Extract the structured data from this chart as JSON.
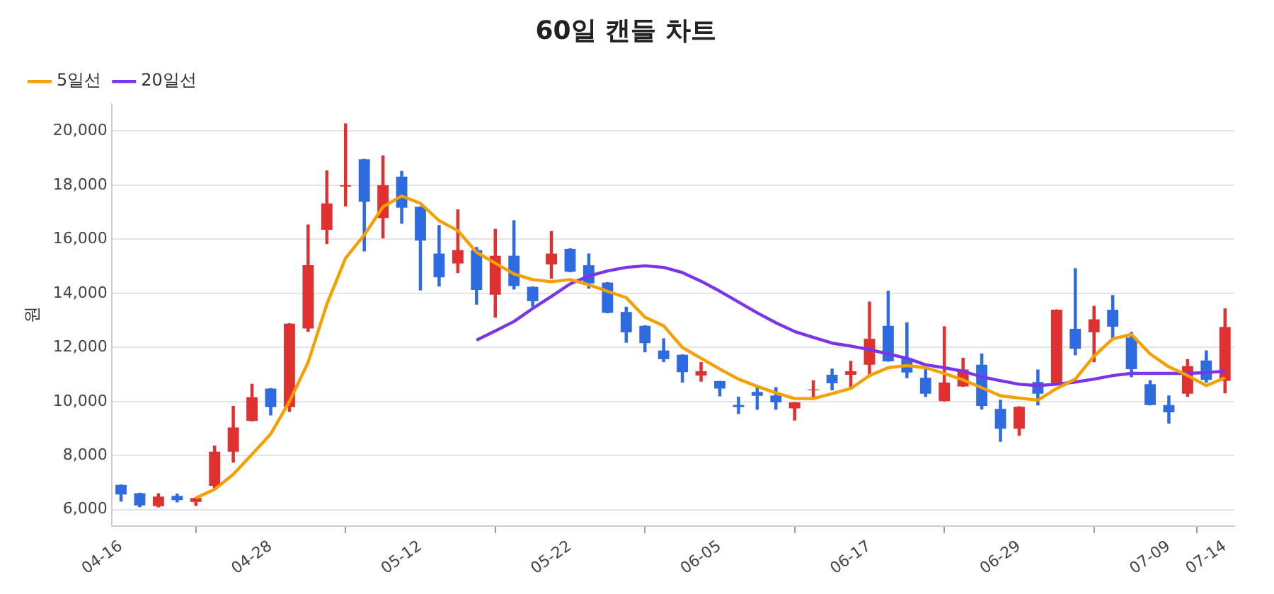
{
  "chart_data": {
    "type": "candlestick",
    "title": "60일 캔들 차트",
    "ylabel": "원",
    "categories": [
      "04-16",
      null,
      null,
      null,
      null,
      null,
      null,
      null,
      "04-28",
      null,
      null,
      null,
      null,
      null,
      null,
      null,
      "05-12",
      null,
      null,
      null,
      null,
      null,
      null,
      null,
      "05-22",
      null,
      null,
      null,
      null,
      null,
      null,
      null,
      "06-05",
      null,
      null,
      null,
      null,
      null,
      null,
      null,
      "06-17",
      null,
      null,
      null,
      null,
      null,
      null,
      null,
      "06-29",
      null,
      null,
      null,
      null,
      null,
      null,
      null,
      "07-09",
      null,
      null,
      "07-14"
    ],
    "ohlc": [
      [
        6913,
        6913,
        6320,
        6561
      ],
      [
        6609,
        6609,
        6112,
        6160
      ],
      [
        6128,
        6593,
        6100,
        6481
      ],
      [
        6513,
        6577,
        6288,
        6353
      ],
      [
        6288,
        6433,
        6160,
        6433
      ],
      [
        6882,
        8352,
        6800,
        8144
      ],
      [
        8144,
        9824,
        7760,
        9040
      ],
      [
        9280,
        10640,
        9280,
        10160
      ],
      [
        10480,
        10480,
        9504,
        9792
      ],
      [
        9792,
        12880,
        9632,
        12880
      ],
      [
        12704,
        16528,
        12592,
        15040
      ],
      [
        16352,
        18528,
        15840,
        17328
      ],
      [
        17950,
        20272,
        17232,
        18000
      ],
      [
        18960,
        18960,
        15568,
        17392
      ],
      [
        16784,
        19088,
        16048,
        18000
      ],
      [
        18320,
        18512,
        16592,
        17168
      ],
      [
        17200,
        17200,
        14128,
        15952
      ],
      [
        15472,
        16512,
        14272,
        14592
      ],
      [
        15104,
        17088,
        14768,
        15600
      ],
      [
        15600,
        15700,
        13600,
        14128
      ],
      [
        13952,
        16368,
        13120,
        15392
      ],
      [
        15392,
        16688,
        14160,
        14272
      ],
      [
        14240,
        14240,
        13520,
        13712
      ],
      [
        15072,
        16288,
        14560,
        15472
      ],
      [
        15648,
        15648,
        14800,
        14800
      ],
      [
        15040,
        15456,
        14192,
        14368
      ],
      [
        14400,
        14400,
        13280,
        13280
      ],
      [
        13312,
        13488,
        12192,
        12560
      ],
      [
        12800,
        12800,
        11840,
        12160
      ],
      [
        11888,
        12320,
        11472,
        11568
      ],
      [
        11728,
        11728,
        10720,
        11088
      ],
      [
        10960,
        11440,
        10752,
        11120
      ],
      [
        10752,
        10752,
        10208,
        10480
      ],
      [
        9872,
        10160,
        9552,
        9792
      ],
      [
        10352,
        10512,
        9712,
        10208
      ],
      [
        10224,
        10512,
        9712,
        9968
      ],
      [
        9744,
        9968,
        9312,
        9968
      ],
      [
        10416,
        10768,
        10160,
        10448
      ],
      [
        10992,
        11200,
        10432,
        10672
      ],
      [
        10992,
        11488,
        10512,
        11120
      ],
      [
        11360,
        13680,
        10928,
        12320
      ],
      [
        12800,
        14080,
        11488,
        11488
      ],
      [
        11600,
        12912,
        10880,
        11072
      ],
      [
        10880,
        11200,
        10192,
        10288
      ],
      [
        10016,
        12768,
        10016,
        10704
      ],
      [
        10560,
        11600,
        10560,
        11184
      ],
      [
        11360,
        11760,
        9728,
        9840
      ],
      [
        9728,
        10048,
        8528,
        8992
      ],
      [
        8992,
        9808,
        8752,
        9808
      ],
      [
        10720,
        11168,
        9872,
        10288
      ],
      [
        10640,
        13392,
        10640,
        13392
      ],
      [
        12688,
        14912,
        11728,
        11952
      ],
      [
        12560,
        13520,
        11472,
        13040
      ],
      [
        13392,
        13920,
        12320,
        12768
      ],
      [
        12368,
        12560,
        10912,
        11200
      ],
      [
        10640,
        10768,
        9872,
        9872
      ],
      [
        9872,
        10208,
        9200,
        9600
      ],
      [
        10288,
        11552,
        10192,
        11312
      ],
      [
        11520,
        11872,
        10720,
        10800
      ],
      [
        10768,
        13424,
        10320,
        12752
      ]
    ],
    "colors": [
      "#2f6be0",
      "#2f6be0",
      "#e03131",
      "#2f6be0",
      "#e03131",
      "#e03131",
      "#e03131",
      "#e03131",
      "#2f6be0",
      "#e03131",
      "#e03131",
      "#e03131",
      "#e03131",
      "#2f6be0",
      "#e03131",
      "#2f6be0",
      "#2f6be0",
      "#2f6be0",
      "#e03131",
      "#2f6be0",
      "#e03131",
      "#2f6be0",
      "#2f6be0",
      "#e03131",
      "#2f6be0",
      "#2f6be0",
      "#2f6be0",
      "#2f6be0",
      "#2f6be0",
      "#2f6be0",
      "#2f6be0",
      "#e03131",
      "#2f6be0",
      "#2f6be0",
      "#2f6be0",
      "#2f6be0",
      "#e03131",
      "#e03131",
      "#2f6be0",
      "#e03131",
      "#e03131",
      "#2f6be0",
      "#2f6be0",
      "#2f6be0",
      "#e03131",
      "#e03131",
      "#2f6be0",
      "#2f6be0",
      "#e03131",
      "#2f6be0",
      "#e03131",
      "#2f6be0",
      "#e03131",
      "#2f6be0",
      "#2f6be0",
      "#2f6be0",
      "#2f6be0",
      "#e03131",
      "#2f6be0",
      "#e03131"
    ],
    "series": [
      {
        "name": "5일선",
        "type": "line",
        "color": "#f59f00",
        "values": [
          null,
          null,
          null,
          null,
          6430,
          6750,
          7310,
          8050,
          8800,
          10000,
          11450,
          13600,
          15300,
          16160,
          17200,
          17600,
          17330,
          16690,
          16320,
          15520,
          15120,
          14720,
          14510,
          14430,
          14510,
          14320,
          14080,
          13840,
          13120,
          12800,
          12000,
          11600,
          11200,
          10830,
          10560,
          10320,
          10110,
          10110,
          10290,
          10480,
          10960,
          11250,
          11330,
          11250,
          11040,
          10800,
          10510,
          10210,
          10130,
          10050,
          10480,
          10830,
          11680,
          12320,
          12480,
          11760,
          11280,
          10960,
          10590,
          10880
        ]
      },
      {
        "name": "20일선",
        "type": "line",
        "color": "#7b35e8",
        "values": [
          null,
          null,
          null,
          null,
          null,
          null,
          null,
          null,
          null,
          null,
          null,
          null,
          null,
          null,
          null,
          null,
          null,
          null,
          null,
          12270,
          12610,
          12960,
          13440,
          13890,
          14350,
          14640,
          14830,
          14960,
          15020,
          14960,
          14770,
          14450,
          14080,
          13680,
          13280,
          12910,
          12590,
          12370,
          12160,
          12050,
          11920,
          11760,
          11600,
          11360,
          11250,
          11120,
          10910,
          10770,
          10640,
          10590,
          10640,
          10720,
          10830,
          10960,
          11040,
          11040,
          11040,
          11040,
          11070,
          11120
        ]
      }
    ],
    "ylim": [
      5400,
      21000
    ],
    "yticks": [
      {
        "value": 6000,
        "label": "6,000"
      },
      {
        "value": 8000,
        "label": "8,000"
      },
      {
        "value": 10000,
        "label": "10,000"
      },
      {
        "value": 12000,
        "label": "12,000"
      },
      {
        "value": 14000,
        "label": "14,000"
      },
      {
        "value": 16000,
        "label": "16,000"
      },
      {
        "value": 18000,
        "label": "18,000"
      },
      {
        "value": 20000,
        "label": "20,000"
      }
    ],
    "grid": "y",
    "legend": "top left",
    "line_style": "solid",
    "marker": "none"
  }
}
